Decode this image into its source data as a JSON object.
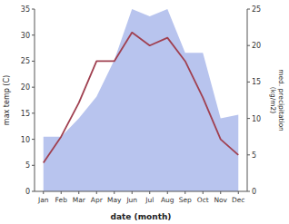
{
  "chart_data": {
    "type": "line",
    "categories": [
      "Jan",
      "Feb",
      "Mar",
      "Apr",
      "May",
      "Jun",
      "Jul",
      "Aug",
      "Sep",
      "Oct",
      "Nov",
      "Dec"
    ],
    "xlabel": "date (month)",
    "ylabel": "max temp (C)",
    "y2label": "med. precipitation\n(kg/m2)",
    "series": [
      {
        "type": "line",
        "color": "#a04050",
        "values": [
          5.5,
          10.5,
          17.0,
          25.0,
          25.0,
          30.5,
          28.0,
          29.5,
          25.0,
          18.0,
          10.0,
          7.0
        ]
      },
      {
        "type": "area",
        "axis": "y2",
        "color": "#b8c4ee",
        "values": [
          7.5,
          7.5,
          10.0,
          13.0,
          18.0,
          25.0,
          24.0,
          25.0,
          19.0,
          19.0,
          10.0,
          10.5
        ]
      }
    ],
    "ylim": [
      0,
      35
    ],
    "yticks": [
      0,
      5,
      10,
      15,
      20,
      25,
      30,
      35
    ],
    "y2lim": [
      0,
      25
    ],
    "y2ticks": [
      0,
      5,
      10,
      15,
      20,
      25
    ],
    "grid": false
  }
}
